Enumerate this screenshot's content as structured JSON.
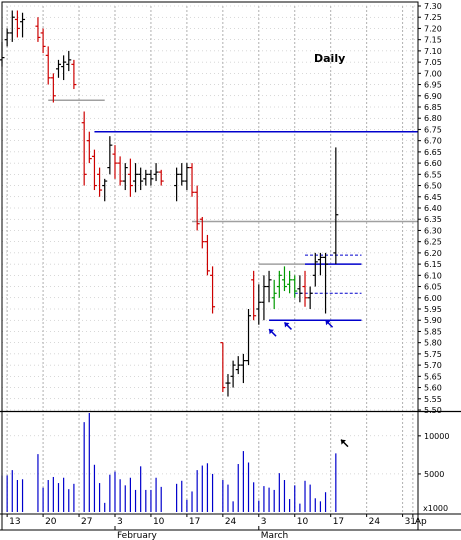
{
  "chart_data": {
    "type": "bar",
    "subtype": "ohlc-price-with-volume",
    "title": "Daily",
    "price_axis": {
      "range": [
        5.5,
        7.3
      ],
      "ticks": [
        "7.30",
        "7.25",
        "7.20",
        "7.15",
        "7.10",
        "7.05",
        "7.00",
        "6.95",
        "6.90",
        "6.85",
        "6.80",
        "6.75",
        "6.70",
        "6.65",
        "6.60",
        "6.55",
        "6.50",
        "6.45",
        "6.40",
        "6.35",
        "6.30",
        "6.25",
        "6.20",
        "6.15",
        "6.10",
        "6.05",
        "6.00",
        "5.95",
        "5.90",
        "5.85",
        "5.80",
        "5.75",
        "5.70",
        "5.65",
        "5.60",
        "5.55",
        "5.50"
      ]
    },
    "volume_axis": {
      "range": [
        0,
        13000
      ],
      "ticks": [
        {
          "value": 10000,
          "label": "10000"
        },
        {
          "value": 5000,
          "label": "5000"
        }
      ],
      "multiplier_label": "x1000"
    },
    "x_axis": {
      "date_labels": [
        {
          "day": 0,
          "label": "13"
        },
        {
          "day": 7,
          "label": "20"
        },
        {
          "day": 14,
          "label": "27"
        },
        {
          "day": 21,
          "label": "3"
        },
        {
          "day": 28,
          "label": "10"
        },
        {
          "day": 35,
          "label": "17"
        },
        {
          "day": 42,
          "label": "24"
        },
        {
          "day": 49,
          "label": "3"
        },
        {
          "day": 56,
          "label": "10"
        },
        {
          "day": 63,
          "label": "17"
        },
        {
          "day": 70,
          "label": "24"
        },
        {
          "day": 77,
          "label": "31"
        },
        {
          "day": 79,
          "label": "Ap"
        }
      ],
      "month_labels": [
        {
          "day": 21,
          "label": "February"
        },
        {
          "day": 49,
          "label": "March"
        }
      ],
      "day_range": [
        -1,
        80
      ]
    },
    "bars": [
      {
        "day": -1,
        "open": 7.06,
        "high": 7.14,
        "low": 7.03,
        "close": 7.07,
        "color": "#000000",
        "volume": 4800
      },
      {
        "day": 0,
        "open": 7.15,
        "high": 7.2,
        "low": 7.12,
        "close": 7.18,
        "color": "#000000",
        "volume": 4800
      },
      {
        "day": 1,
        "open": 7.18,
        "high": 7.28,
        "low": 7.14,
        "close": 7.25,
        "color": "#000000",
        "volume": 5500
      },
      {
        "day": 2,
        "open": 7.24,
        "high": 7.28,
        "low": 7.16,
        "close": 7.2,
        "color": "#cc0000",
        "volume": 4200
      },
      {
        "day": 3,
        "open": 7.23,
        "high": 7.27,
        "low": 7.16,
        "close": 7.24,
        "color": "#000000",
        "volume": 4300
      },
      {
        "day": 6,
        "open": 7.21,
        "high": 7.25,
        "low": 7.14,
        "close": 7.16,
        "color": "#cc0000",
        "volume": 7600
      },
      {
        "day": 7,
        "open": 7.18,
        "high": 7.2,
        "low": 7.09,
        "close": 7.12,
        "color": "#cc0000",
        "volume": 3200
      },
      {
        "day": 8,
        "open": 7.08,
        "high": 7.12,
        "low": 6.95,
        "close": 6.98,
        "color": "#cc0000",
        "volume": 4200
      },
      {
        "day": 9,
        "open": 6.98,
        "high": 7.0,
        "low": 6.87,
        "close": 6.9,
        "color": "#cc0000",
        "volume": 4600
      },
      {
        "day": 10,
        "open": 7.02,
        "high": 7.06,
        "low": 6.98,
        "close": 7.04,
        "color": "#000000",
        "volume": 3800
      },
      {
        "day": 11,
        "open": 7.03,
        "high": 7.08,
        "low": 6.97,
        "close": 7.05,
        "color": "#000000",
        "volume": 4500
      },
      {
        "day": 12,
        "open": 7.04,
        "high": 7.1,
        "low": 7.01,
        "close": 7.06,
        "color": "#000000",
        "volume": 3000
      },
      {
        "day": 13,
        "open": 7.04,
        "high": 7.06,
        "low": 6.93,
        "close": 6.95,
        "color": "#cc0000",
        "volume": 3700
      },
      {
        "day": 15,
        "open": 6.78,
        "high": 6.83,
        "low": 6.5,
        "close": 6.55,
        "color": "#cc0000",
        "volume": 11800
      },
      {
        "day": 16,
        "open": 6.7,
        "high": 6.74,
        "low": 6.6,
        "close": 6.62,
        "color": "#cc0000",
        "volume": 13000
      },
      {
        "day": 17,
        "open": 6.63,
        "high": 6.66,
        "low": 6.48,
        "close": 6.5,
        "color": "#cc0000",
        "volume": 6200
      },
      {
        "day": 18,
        "open": 6.55,
        "high": 6.58,
        "low": 6.45,
        "close": 6.48,
        "color": "#cc0000",
        "volume": 3800
      },
      {
        "day": 19,
        "open": 6.5,
        "high": 6.53,
        "low": 6.43,
        "close": 6.52,
        "color": "#000000",
        "volume": 1200
      },
      {
        "day": 20,
        "open": 6.58,
        "high": 6.72,
        "low": 6.55,
        "close": 6.68,
        "color": "#000000",
        "volume": 4900
      },
      {
        "day": 21,
        "open": 6.64,
        "high": 6.68,
        "low": 6.53,
        "close": 6.6,
        "color": "#cc0000",
        "volume": 5300
      },
      {
        "day": 22,
        "open": 6.6,
        "high": 6.63,
        "low": 6.5,
        "close": 6.52,
        "color": "#cc0000",
        "volume": 4300
      },
      {
        "day": 23,
        "open": 6.52,
        "high": 6.6,
        "low": 6.48,
        "close": 6.58,
        "color": "#000000",
        "volume": 3500
      },
      {
        "day": 24,
        "open": 6.55,
        "high": 6.62,
        "low": 6.45,
        "close": 6.5,
        "color": "#cc0000",
        "volume": 4500
      },
      {
        "day": 25,
        "open": 6.52,
        "high": 6.6,
        "low": 6.47,
        "close": 6.55,
        "color": "#000000",
        "volume": 2900
      },
      {
        "day": 26,
        "open": 6.55,
        "high": 6.58,
        "low": 6.48,
        "close": 6.52,
        "color": "#000000",
        "volume": 6000
      },
      {
        "day": 27,
        "open": 6.53,
        "high": 6.57,
        "low": 6.5,
        "close": 6.55,
        "color": "#000000",
        "volume": 2900
      },
      {
        "day": 28,
        "open": 6.55,
        "high": 6.57,
        "low": 6.5,
        "close": 6.53,
        "color": "#000000",
        "volume": 2900
      },
      {
        "day": 29,
        "open": 6.55,
        "high": 6.6,
        "low": 6.52,
        "close": 6.56,
        "color": "#000000",
        "volume": 4500
      },
      {
        "day": 30,
        "open": 6.56,
        "high": 6.57,
        "low": 6.5,
        "close": 6.52,
        "color": "#cc0000",
        "volume": 3300
      },
      {
        "day": 33,
        "open": 6.5,
        "high": 6.58,
        "low": 6.43,
        "close": 6.55,
        "color": "#000000",
        "volume": 3700
      },
      {
        "day": 34,
        "open": 6.55,
        "high": 6.6,
        "low": 6.5,
        "close": 6.52,
        "color": "#000000",
        "volume": 4100
      },
      {
        "day": 35,
        "open": 6.52,
        "high": 6.6,
        "low": 6.48,
        "close": 6.58,
        "color": "#000000",
        "volume": 1600
      },
      {
        "day": 36,
        "open": 6.58,
        "high": 6.6,
        "low": 6.45,
        "close": 6.47,
        "color": "#cc0000",
        "volume": 2700
      },
      {
        "day": 37,
        "open": 6.47,
        "high": 6.5,
        "low": 6.3,
        "close": 6.33,
        "color": "#cc0000",
        "volume": 5500
      },
      {
        "day": 38,
        "open": 6.35,
        "high": 6.36,
        "low": 6.22,
        "close": 6.25,
        "color": "#cc0000",
        "volume": 6100
      },
      {
        "day": 39,
        "open": 6.25,
        "high": 6.28,
        "low": 6.1,
        "close": 6.12,
        "color": "#cc0000",
        "volume": 6400
      },
      {
        "day": 40,
        "open": 6.1,
        "high": 6.14,
        "low": 5.93,
        "close": 5.96,
        "color": "#cc0000",
        "volume": 5000
      },
      {
        "day": 42,
        "open": 5.8,
        "high": 5.8,
        "low": 5.58,
        "close": 5.6,
        "color": "#cc0000",
        "volume": 4200
      },
      {
        "day": 43,
        "open": 5.62,
        "high": 5.66,
        "low": 5.56,
        "close": 5.62,
        "color": "#000000",
        "volume": 3600
      },
      {
        "day": 44,
        "open": 5.65,
        "high": 5.72,
        "low": 5.6,
        "close": 5.7,
        "color": "#000000",
        "volume": 1400
      },
      {
        "day": 45,
        "open": 5.68,
        "high": 5.74,
        "low": 5.66,
        "close": 5.7,
        "color": "#000000",
        "volume": 6300
      },
      {
        "day": 46,
        "open": 5.7,
        "high": 5.75,
        "low": 5.62,
        "close": 5.72,
        "color": "#000000",
        "volume": 8000
      },
      {
        "day": 47,
        "open": 5.72,
        "high": 5.95,
        "low": 5.7,
        "close": 5.92,
        "color": "#000000",
        "volume": 6500
      },
      {
        "day": 48,
        "open": 6.08,
        "high": 6.12,
        "low": 5.9,
        "close": 5.92,
        "color": "#cc0000",
        "volume": 3900
      },
      {
        "day": 49,
        "open": 5.95,
        "high": 6.06,
        "low": 5.88,
        "close": 5.98,
        "color": "#000000",
        "volume": 1500
      },
      {
        "day": 50,
        "open": 5.98,
        "high": 6.1,
        "low": 5.9,
        "close": 6.05,
        "color": "#000000",
        "volume": 3400
      },
      {
        "day": 51,
        "open": 6.05,
        "high": 6.12,
        "low": 5.98,
        "close": 6.08,
        "color": "#000000",
        "volume": 3200
      },
      {
        "day": 52,
        "open": 6.0,
        "high": 6.08,
        "low": 5.95,
        "close": 6.02,
        "color": "#009900",
        "volume": 2900
      },
      {
        "day": 53,
        "open": 6.05,
        "high": 6.12,
        "low": 6.0,
        "close": 6.1,
        "color": "#009900",
        "volume": 5100
      },
      {
        "day": 54,
        "open": 6.08,
        "high": 6.14,
        "low": 6.03,
        "close": 6.05,
        "color": "#009900",
        "volume": 4200
      },
      {
        "day": 55,
        "open": 6.06,
        "high": 6.12,
        "low": 6.02,
        "close": 6.08,
        "color": "#009900",
        "volume": 1700
      },
      {
        "day": 56,
        "open": 6.08,
        "high": 6.1,
        "low": 6.0,
        "close": 6.03,
        "color": "#009900",
        "volume": 3500
      },
      {
        "day": 57,
        "open": 6.04,
        "high": 6.1,
        "low": 5.98,
        "close": 6.02,
        "color": "#000000",
        "volume": 1100
      },
      {
        "day": 58,
        "open": 6.05,
        "high": 6.12,
        "low": 5.96,
        "close": 6.0,
        "color": "#cc0000",
        "volume": 4100
      },
      {
        "day": 59,
        "open": 6.0,
        "high": 6.05,
        "low": 5.95,
        "close": 6.02,
        "color": "#000000",
        "volume": 3600
      },
      {
        "day": 60,
        "open": 6.1,
        "high": 6.2,
        "low": 6.05,
        "close": 6.16,
        "color": "#000000",
        "volume": 1800
      },
      {
        "day": 61,
        "open": 6.17,
        "high": 6.2,
        "low": 6.1,
        "close": 6.18,
        "color": "#000000",
        "volume": 1400
      },
      {
        "day": 62,
        "open": 6.18,
        "high": 6.2,
        "low": 5.93,
        "close": 6.15,
        "color": "#000000",
        "volume": 2600
      },
      {
        "day": 64,
        "open": 6.2,
        "high": 6.67,
        "low": 6.15,
        "close": 6.37,
        "color": "#000000",
        "volume": 7700
      }
    ],
    "reference_lines": [
      {
        "price": 6.88,
        "from_day": 8,
        "to_day": 19,
        "color": "#a0a0a0",
        "style": "solid"
      },
      {
        "price": 6.74,
        "from_day": 17,
        "to_day": 80,
        "color": "#0000cc",
        "style": "solid"
      },
      {
        "price": 6.34,
        "from_day": 36,
        "to_day": 80,
        "color": "#a0a0a0",
        "style": "solid"
      },
      {
        "price": 6.15,
        "from_day": 49,
        "to_day": 58,
        "color": "#a0a0a0",
        "style": "solid"
      },
      {
        "price": 6.15,
        "from_day": 58,
        "to_day": 69,
        "color": "#0000cc",
        "style": "solid"
      },
      {
        "price": 6.19,
        "from_day": 58,
        "to_day": 69,
        "color": "#0000cc",
        "style": "dashed"
      },
      {
        "price": 6.02,
        "from_day": 56,
        "to_day": 69,
        "color": "#0000cc",
        "style": "dashed"
      },
      {
        "price": 5.9,
        "from_day": 51,
        "to_day": 69,
        "color": "#0000cc",
        "style": "solid"
      }
    ],
    "arrows": [
      {
        "panel": "price",
        "day": 51,
        "price": 5.86,
        "direction": "up-left",
        "color": "#0000cc"
      },
      {
        "panel": "price",
        "day": 54,
        "price": 5.89,
        "direction": "up-left",
        "color": "#0000cc"
      },
      {
        "panel": "price",
        "day": 62,
        "price": 5.9,
        "direction": "up-left",
        "color": "#0000cc"
      },
      {
        "panel": "volume",
        "day": 65,
        "volume": 9500,
        "direction": "up-left",
        "color": "#000000"
      }
    ],
    "grid": true,
    "colors": {
      "up_bar": "#000000",
      "down_bar": "#cc0000",
      "consolidation_bar": "#009900",
      "volume": "#0000cc",
      "grid": "#b0b0b0"
    }
  }
}
